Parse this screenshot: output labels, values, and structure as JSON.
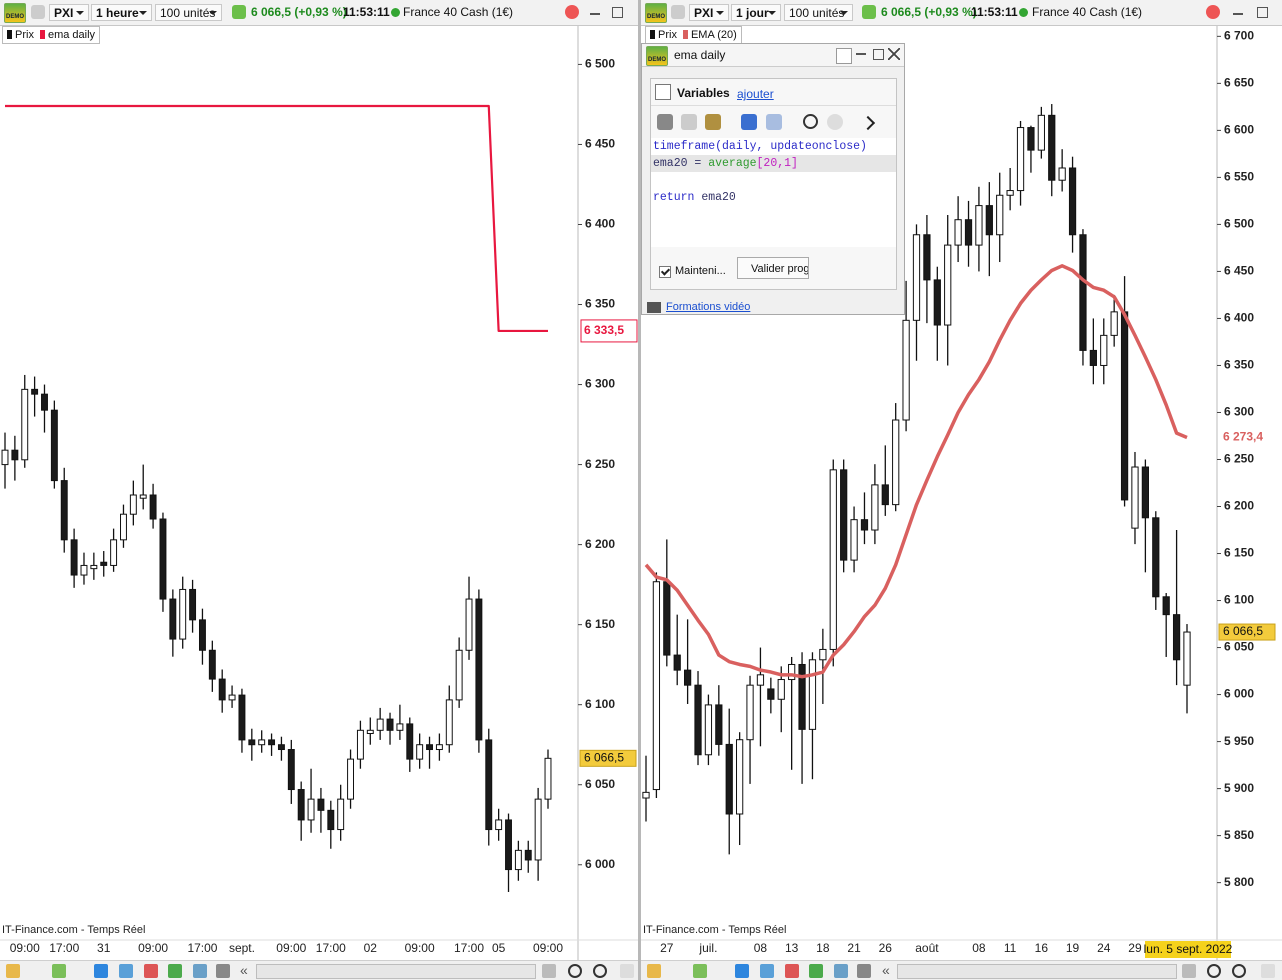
{
  "app": {
    "demo_badge": "DEMO"
  },
  "left": {
    "toolbar": {
      "symbol": "PXI",
      "timeframe": "1 heure",
      "units": "100 unités",
      "quote": "6 066,5 (+0,93 %)",
      "time": "11:53:11",
      "instrument": "France 40 Cash (1€)"
    },
    "watermark": "IT-Finance.com - Temps Réel",
    "scroll_back": "«",
    "chart": {
      "type": "candlestick",
      "price_name": "Prix",
      "up_color": "#ffffff",
      "down_color": "#1a1a1a",
      "candles": [
        [
          6250,
          6270,
          6235,
          6259
        ],
        [
          6259,
          6268,
          6240,
          6253
        ],
        [
          6253,
          6306,
          6248,
          6297
        ],
        [
          6297,
          6305,
          6280,
          6294
        ],
        [
          6294,
          6300,
          6270,
          6284
        ],
        [
          6284,
          6290,
          6235,
          6240
        ],
        [
          6240,
          6248,
          6195,
          6203
        ],
        [
          6203,
          6210,
          6173,
          6181
        ],
        [
          6181,
          6195,
          6175,
          6187
        ],
        [
          6185,
          6195,
          6178,
          6187
        ],
        [
          6189,
          6196,
          6180,
          6187
        ],
        [
          6187,
          6210,
          6183,
          6203
        ],
        [
          6203,
          6225,
          6198,
          6219
        ],
        [
          6219,
          6240,
          6212,
          6231
        ],
        [
          6229,
          6250,
          6222,
          6231
        ],
        [
          6231,
          6238,
          6210,
          6216
        ],
        [
          6216,
          6220,
          6158,
          6166
        ],
        [
          6166,
          6172,
          6130,
          6141
        ],
        [
          6141,
          6180,
          6135,
          6172
        ],
        [
          6172,
          6178,
          6145,
          6153
        ],
        [
          6153,
          6160,
          6125,
          6134
        ],
        [
          6134,
          6140,
          6108,
          6116
        ],
        [
          6116,
          6122,
          6095,
          6103
        ],
        [
          6103,
          6112,
          6098,
          6106
        ],
        [
          6106,
          6110,
          6070,
          6078
        ],
        [
          6078,
          6085,
          6065,
          6075
        ],
        [
          6075,
          6084,
          6070,
          6078
        ],
        [
          6078,
          6082,
          6068,
          6075
        ],
        [
          6075,
          6080,
          6065,
          6072
        ],
        [
          6072,
          6078,
          6038,
          6047
        ],
        [
          6047,
          6052,
          6015,
          6028
        ],
        [
          6028,
          6060,
          6020,
          6041
        ],
        [
          6041,
          6048,
          6020,
          6034
        ],
        [
          6034,
          6040,
          6010,
          6022
        ],
        [
          6022,
          6050,
          6015,
          6041
        ],
        [
          6041,
          6072,
          6035,
          6066
        ],
        [
          6066,
          6090,
          6060,
          6084
        ],
        [
          6082,
          6092,
          6075,
          6084
        ],
        [
          6084,
          6098,
          6078,
          6091
        ],
        [
          6091,
          6095,
          6075,
          6084
        ],
        [
          6084,
          6100,
          6078,
          6088
        ],
        [
          6088,
          6092,
          6058,
          6066
        ],
        [
          6066,
          6082,
          6060,
          6075
        ],
        [
          6075,
          6080,
          6060,
          6072
        ],
        [
          6072,
          6082,
          6065,
          6075
        ],
        [
          6075,
          6112,
          6070,
          6103
        ],
        [
          6103,
          6142,
          6098,
          6134
        ],
        [
          6134,
          6180,
          6128,
          6166
        ],
        [
          6166,
          6172,
          6070,
          6078
        ],
        [
          6078,
          6085,
          6012,
          6022
        ],
        [
          6022,
          6035,
          6015,
          6028
        ],
        [
          6028,
          6032,
          5983,
          5997
        ],
        [
          5997,
          6015,
          5990,
          6009
        ],
        [
          6009,
          6015,
          5995,
          6003
        ],
        [
          6003,
          6048,
          5990,
          6041
        ],
        [
          6041,
          6072,
          6035,
          6066.5
        ]
      ],
      "categories": [
        null,
        null,
        "09:00",
        null,
        null,
        null,
        "17:00",
        null,
        null,
        null,
        "31",
        null,
        null,
        null,
        null,
        "09:00",
        null,
        null,
        null,
        null,
        "17:00",
        null,
        null,
        null,
        "sept.",
        null,
        null,
        null,
        null,
        "09:00",
        null,
        null,
        null,
        "17:00",
        null,
        null,
        null,
        "02",
        null,
        null,
        null,
        null,
        "09:00",
        null,
        null,
        null,
        null,
        "17:00",
        null,
        null,
        "05",
        null,
        null,
        null,
        null,
        "09:00"
      ],
      "ema": {
        "name": "ema daily",
        "color": "#e8173f",
        "values": [
          6474,
          6474,
          6474,
          6474,
          6474,
          6474,
          6474,
          6474,
          6474,
          6474,
          6474,
          6474,
          6474,
          6474,
          6474,
          6474,
          6474,
          6474,
          6474,
          6474,
          6474,
          6474,
          6474,
          6474,
          6474,
          6474,
          6474,
          6474,
          6474,
          6474,
          6474,
          6474,
          6474,
          6474,
          6474,
          6474,
          6474,
          6474,
          6474,
          6474,
          6474,
          6474,
          6474,
          6474,
          6474,
          6474,
          6474,
          6474,
          6474,
          6474,
          6333.5,
          6333.5,
          6333.5,
          6333.5,
          6333.5,
          6333.5
        ]
      },
      "ema_last": {
        "value": 6333.5,
        "label": "6 333,5"
      },
      "last_price": {
        "value": 6066.5,
        "label": "6 066,5"
      },
      "last_price_color": "#f3cb3c",
      "ylim": [
        5953,
        6524
      ],
      "yticks": [
        {
          "value": 6000,
          "label": "6 000"
        },
        {
          "value": 6050,
          "label": "6 050"
        },
        {
          "value": 6100,
          "label": "6 100"
        },
        {
          "value": 6150,
          "label": "6 150"
        },
        {
          "value": 6200,
          "label": "6 200"
        },
        {
          "value": 6250,
          "label": "6 250"
        },
        {
          "value": 6300,
          "label": "6 300"
        },
        {
          "value": 6350,
          "label": "6 350"
        },
        {
          "value": 6400,
          "label": "6 400"
        },
        {
          "value": 6450,
          "label": "6 450"
        },
        {
          "value": 6500,
          "label": "6 500"
        }
      ]
    }
  },
  "right": {
    "toolbar": {
      "symbol": "PXI",
      "timeframe": "1 jour",
      "units": "100 unités",
      "quote": "6 066,5 (+0,93 %)",
      "time": "11:53:11",
      "instrument": "France 40 Cash (1€)"
    },
    "watermark": "IT-Finance.com - Temps Réel",
    "scroll_back": "«",
    "chart": {
      "type": "candlestick",
      "price_name": "Prix",
      "up_color": "#ffffff",
      "down_color": "#1a1a1a",
      "candles": [
        [
          5890,
          5935,
          5865,
          5896
        ],
        [
          5899,
          6130,
          5890,
          6120
        ],
        [
          6120,
          6165,
          6030,
          6042
        ],
        [
          6042,
          6085,
          6010,
          6026
        ],
        [
          6026,
          6080,
          5990,
          6010
        ],
        [
          6010,
          6025,
          5925,
          5936
        ],
        [
          5936,
          6000,
          5925,
          5989
        ],
        [
          5989,
          6010,
          5935,
          5947
        ],
        [
          5947,
          5985,
          5830,
          5873
        ],
        [
          5873,
          5960,
          5840,
          5952
        ],
        [
          5952,
          6020,
          5905,
          6010
        ],
        [
          6010,
          6050,
          5945,
          6021
        ],
        [
          6006,
          6018,
          5980,
          5995
        ],
        [
          5995,
          6030,
          5960,
          6016
        ],
        [
          6016,
          6040,
          5920,
          6032
        ],
        [
          6032,
          6045,
          5905,
          5963
        ],
        [
          5963,
          6045,
          5910,
          6037
        ],
        [
          6037,
          6070,
          5990,
          6048
        ],
        [
          6048,
          6250,
          6030,
          6239
        ],
        [
          6239,
          6250,
          6130,
          6143
        ],
        [
          6143,
          6200,
          6130,
          6186
        ],
        [
          6186,
          6215,
          6160,
          6175
        ],
        [
          6175,
          6245,
          6160,
          6223
        ],
        [
          6223,
          6265,
          6190,
          6202
        ],
        [
          6202,
          6310,
          6195,
          6292
        ],
        [
          6292,
          6440,
          6280,
          6398
        ],
        [
          6398,
          6500,
          6355,
          6489
        ],
        [
          6489,
          6510,
          6395,
          6441
        ],
        [
          6441,
          6455,
          6355,
          6393
        ],
        [
          6393,
          6510,
          6350,
          6478
        ],
        [
          6478,
          6530,
          6460,
          6505
        ],
        [
          6505,
          6525,
          6455,
          6478
        ],
        [
          6478,
          6540,
          6450,
          6520
        ],
        [
          6520,
          6545,
          6445,
          6489
        ],
        [
          6489,
          6555,
          6460,
          6531
        ],
        [
          6531,
          6560,
          6515,
          6536
        ],
        [
          6536,
          6610,
          6520,
          6603
        ],
        [
          6603,
          6605,
          6555,
          6579
        ],
        [
          6579,
          6625,
          6570,
          6616
        ],
        [
          6616,
          6628,
          6530,
          6547
        ],
        [
          6547,
          6580,
          6535,
          6560
        ],
        [
          6560,
          6572,
          6470,
          6489
        ],
        [
          6489,
          6495,
          6350,
          6366
        ],
        [
          6366,
          6400,
          6330,
          6350
        ],
        [
          6350,
          6400,
          6330,
          6382
        ],
        [
          6382,
          6425,
          6370,
          6407
        ],
        [
          6407,
          6445,
          6200,
          6207
        ],
        [
          6177,
          6258,
          6160,
          6242
        ],
        [
          6242,
          6250,
          6130,
          6188
        ],
        [
          6188,
          6195,
          6090,
          6104
        ],
        [
          6104,
          6108,
          6040,
          6085
        ],
        [
          6085,
          6175,
          6010,
          6037
        ],
        [
          6010,
          6075,
          5980,
          6066.5
        ]
      ],
      "categories": [
        null,
        null,
        "27",
        null,
        null,
        null,
        "juil.",
        null,
        null,
        null,
        null,
        "08",
        null,
        null,
        "13",
        null,
        null,
        "18",
        null,
        null,
        "21",
        null,
        null,
        "26",
        null,
        null,
        null,
        "août",
        null,
        null,
        null,
        null,
        "08",
        null,
        null,
        "11",
        null,
        null,
        "16",
        null,
        null,
        "19",
        null,
        null,
        "24",
        null,
        null,
        "29",
        null,
        null,
        null,
        null,
        null
      ],
      "x_cursor_label": "lun. 5 sept. 2022",
      "x_cursor_color": "#f5d21c",
      "ema": {
        "name": "EMA (20)",
        "color": "#d9605f",
        "values": [
          6138,
          6125,
          6122,
          6111,
          6095,
          6079,
          6064,
          6042,
          6035,
          6032,
          6030,
          6026,
          6024,
          6021,
          6021,
          6019,
          6021,
          6024,
          6042,
          6053,
          6067,
          6083,
          6095,
          6113,
          6138,
          6170,
          6202,
          6228,
          6253,
          6276,
          6300,
          6319,
          6335,
          6354,
          6377,
          6398,
          6416,
          6430,
          6441,
          6451,
          6456,
          6451,
          6441,
          6433,
          6430,
          6423,
          6404,
          6382,
          6359,
          6335,
          6308,
          6278,
          6273.4
        ]
      },
      "ema_last": {
        "value": 6273.4,
        "label": "6 273,4"
      },
      "last_price": {
        "value": 6066.5,
        "label": "6 066,5"
      },
      "last_price_color": "#f3cb3c",
      "ylim": [
        5739,
        6711
      ],
      "yticks": [
        {
          "value": 5800,
          "label": "5 800"
        },
        {
          "value": 5850,
          "label": "5 850"
        },
        {
          "value": 5900,
          "label": "5 900"
        },
        {
          "value": 5950,
          "label": "5 950"
        },
        {
          "value": 6000,
          "label": "6 000"
        },
        {
          "value": 6050,
          "label": "6 050"
        },
        {
          "value": 6100,
          "label": "6 100"
        },
        {
          "value": 6150,
          "label": "6 150"
        },
        {
          "value": 6200,
          "label": "6 200"
        },
        {
          "value": 6250,
          "label": "6 250"
        },
        {
          "value": 6300,
          "label": "6 300"
        },
        {
          "value": 6350,
          "label": "6 350"
        },
        {
          "value": 6400,
          "label": "6 400"
        },
        {
          "value": 6450,
          "label": "6 450"
        },
        {
          "value": 6500,
          "label": "6 500"
        },
        {
          "value": 6550,
          "label": "6 550"
        },
        {
          "value": 6600,
          "label": "6 600"
        },
        {
          "value": 6650,
          "label": "6 650"
        },
        {
          "value": 6700,
          "label": "6 700"
        }
      ]
    }
  },
  "editor": {
    "title": "ema daily",
    "section": "Variables",
    "add_link": "ajouter",
    "code": [
      [
        {
          "text": "timeframe(daily, updateonclose)",
          "color": "#2b2bc8"
        }
      ],
      [
        {
          "text": "ema20 = ",
          "color": "#333366"
        },
        {
          "text": "average",
          "color": "#2e9a2e"
        },
        {
          "text": "[20,1]",
          "color": "#c020c0"
        }
      ],
      [],
      [
        {
          "text": "return",
          "color": "#2b2bc8"
        },
        {
          "text": " ema20",
          "color": "#333366"
        }
      ]
    ],
    "keep_label": "Mainteni...",
    "validate_button": "Valider prog",
    "video_link": "Formations vidéo"
  }
}
